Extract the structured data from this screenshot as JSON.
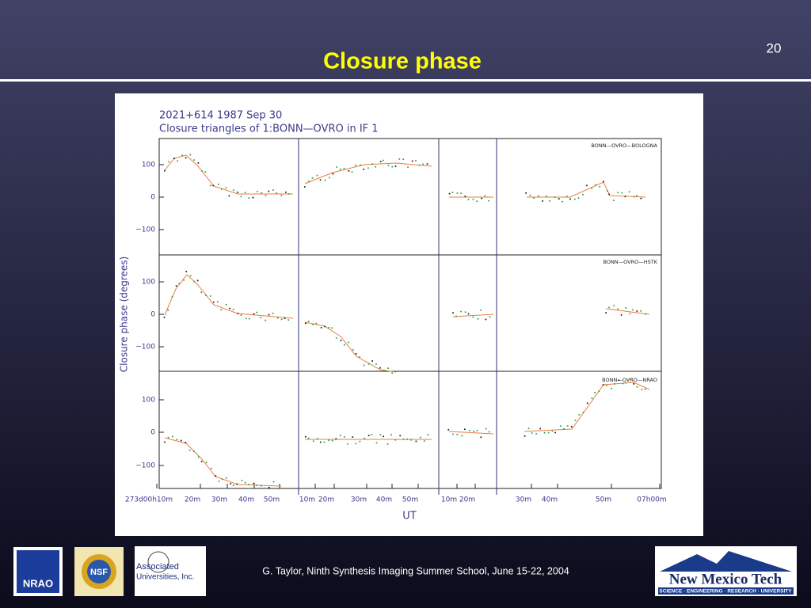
{
  "slide": {
    "page_number": "20",
    "title": "Closure phase",
    "footer": "G. Taylor, Ninth Synthesis Imaging Summer School, June 15-22, 2004"
  },
  "figure": {
    "title_line_1": "2021+614   1987 Sep 30",
    "title_line_2": "Closure triangles of 1:BONN—OVRO in IF 1",
    "y_label": "Closure phase   (degrees)",
    "x_label": "UT",
    "y_tick_labels": [
      "100",
      "0",
      "−100"
    ],
    "panel_labels": [
      "BONN—OVRO—BOLOGNA",
      "BONN—OVRO—HSTK",
      "BONN—OVRO—NRAO"
    ],
    "x_tick_labels": [
      "273d00h10m",
      "20m",
      "30m",
      "40m",
      "50m",
      "10m",
      "20m",
      "30m",
      "40m",
      "50m",
      "10m",
      "20m",
      "30m",
      "40m",
      "50m",
      "07h00m"
    ]
  },
  "logos": {
    "nrao": "NRAO",
    "nsf": "NSF",
    "aui_1": "Associated",
    "aui_2": "Universities, Inc.",
    "nmt": "New Mexico Tech",
    "nmt_sub": "SCIENCE · ENGINEERING · RESEARCH · UNIVERSITY"
  }
}
